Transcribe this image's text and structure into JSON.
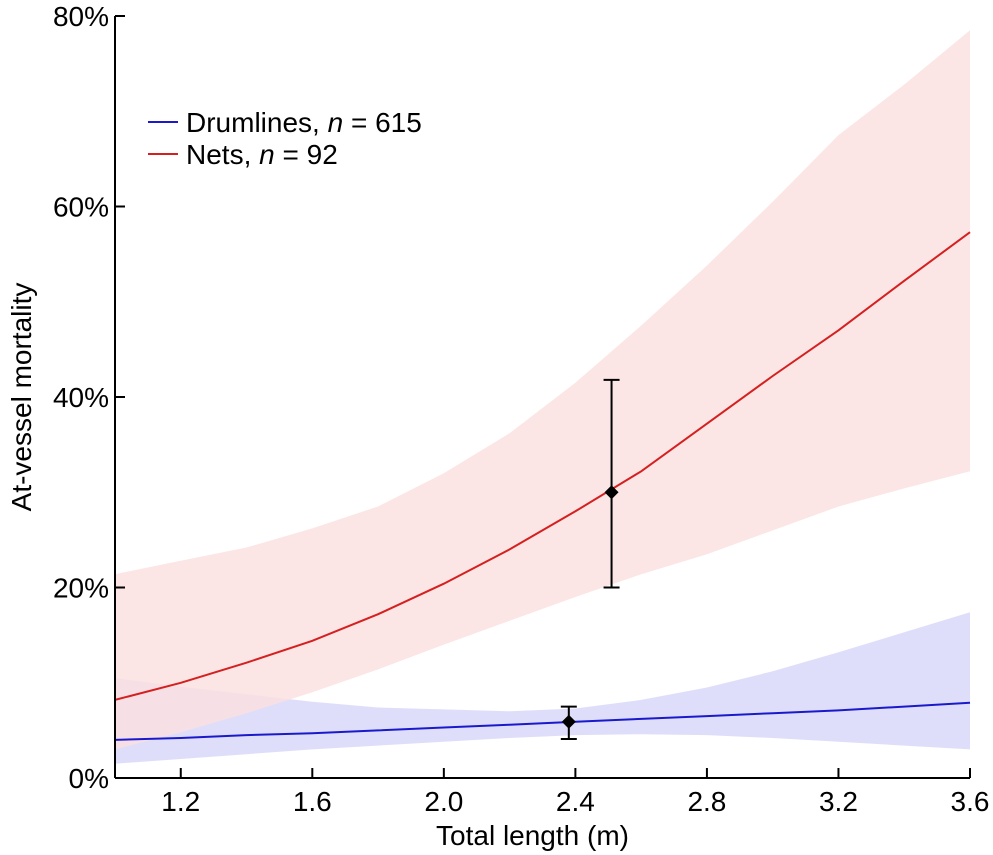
{
  "chart_data": {
    "type": "line",
    "xlabel": "Total length (m)",
    "ylabel": "At-vessel mortality",
    "xlim": [
      1.0,
      3.6
    ],
    "ylim": [
      0,
      80
    ],
    "x_ticks": [
      1.2,
      1.6,
      2.0,
      2.4,
      2.8,
      3.2,
      3.6
    ],
    "x_tick_labels": [
      "1.2",
      "1.6",
      "2.0",
      "2.4",
      "2.8",
      "3.2",
      "3.6"
    ],
    "y_ticks": [
      0,
      20,
      40,
      60,
      80
    ],
    "y_tick_labels": [
      "0%",
      "20%",
      "40%",
      "60%",
      "80%"
    ],
    "grid": false,
    "legend_position": "top-left",
    "series": [
      {
        "name": "Drumlines",
        "legend_label": "Drumlines, ",
        "legend_n": "n",
        "legend_count": " = 615",
        "color": "#1a1acc",
        "band_color": "#dedefa",
        "x": [
          1.0,
          1.2,
          1.4,
          1.6,
          1.8,
          2.0,
          2.2,
          2.4,
          2.6,
          2.8,
          3.0,
          3.2,
          3.4,
          3.6
        ],
        "y": [
          4.0,
          4.2,
          4.5,
          4.7,
          5.0,
          5.3,
          5.6,
          5.9,
          6.2,
          6.5,
          6.8,
          7.1,
          7.5,
          7.9
        ],
        "lower": [
          1.5,
          2.0,
          2.5,
          3.0,
          3.4,
          3.8,
          4.2,
          4.5,
          4.6,
          4.5,
          4.2,
          3.8,
          3.4,
          3.0
        ],
        "upper": [
          10.5,
          9.6,
          8.8,
          8.0,
          7.4,
          7.2,
          7.0,
          7.3,
          8.2,
          9.5,
          11.2,
          13.2,
          15.3,
          17.4
        ],
        "point": {
          "x": 2.38,
          "y": 5.9,
          "lower": 4.1,
          "upper": 7.5
        }
      },
      {
        "name": "Nets",
        "legend_label": "Nets, ",
        "legend_n": "n",
        "legend_count": " = 92",
        "color": "#d42020",
        "band_color": "#fbe0e0",
        "x": [
          1.0,
          1.2,
          1.4,
          1.6,
          1.8,
          2.0,
          2.2,
          2.4,
          2.6,
          2.8,
          3.0,
          3.2,
          3.4,
          3.6
        ],
        "y": [
          8.2,
          10.0,
          12.1,
          14.4,
          17.2,
          20.4,
          24.0,
          28.0,
          32.2,
          37.2,
          42.2,
          47.0,
          52.2,
          57.3
        ],
        "lower": [
          3.0,
          4.8,
          6.8,
          9.0,
          11.4,
          14.0,
          16.5,
          19.0,
          21.4,
          23.5,
          26.0,
          28.5,
          30.4,
          32.2
        ],
        "upper": [
          21.4,
          22.8,
          24.2,
          26.2,
          28.5,
          32.0,
          36.2,
          41.5,
          47.5,
          53.8,
          60.5,
          67.5,
          72.8,
          78.5
        ],
        "point": {
          "x": 2.51,
          "y": 30.0,
          "lower": 20.0,
          "upper": 41.8
        }
      }
    ]
  }
}
